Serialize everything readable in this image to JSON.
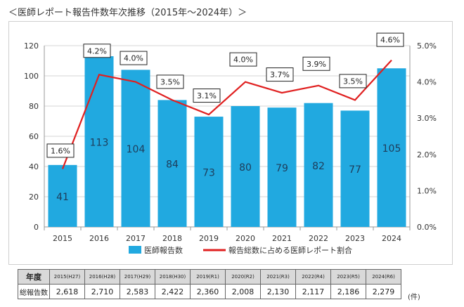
{
  "page": {
    "title": "＜医師レポート報告件数年次推移（2015年～2024年）＞"
  },
  "chart_data": {
    "type": "bar+line",
    "categories": [
      "2015",
      "2016",
      "2017",
      "2018",
      "2019",
      "2020",
      "2021",
      "2022",
      "2023",
      "2024"
    ],
    "series": [
      {
        "name": "医師報告数",
        "type": "bar",
        "axis": "left",
        "color": "#21a9e0",
        "values": [
          41,
          113,
          104,
          84,
          73,
          80,
          79,
          82,
          77,
          105
        ]
      },
      {
        "name": "報告総数に占める医師レポート割合",
        "type": "line",
        "axis": "right",
        "color": "#e02020",
        "values": [
          1.6,
          4.2,
          4.0,
          3.5,
          3.1,
          4.0,
          3.7,
          3.9,
          3.5,
          4.6
        ],
        "labels": [
          "1.6%",
          "4.2%",
          "4.0%",
          "3.5%",
          "3.1%",
          "4.0%",
          "3.7%",
          "3.9%",
          "3.5%",
          "4.6%"
        ]
      }
    ],
    "ylim_left": [
      0,
      120
    ],
    "yticks_left": [
      "0",
      "20",
      "40",
      "60",
      "80",
      "100",
      "120"
    ],
    "ylim_right": [
      0,
      5.0
    ],
    "yticks_right": [
      "0.0%",
      "1.0%",
      "2.0%",
      "3.0%",
      "4.0%",
      "5.0%"
    ],
    "grid": true,
    "legend_position": "bottom"
  },
  "table": {
    "row_header_year": "年度",
    "row_header_total": "総報告数",
    "years": [
      "2015(H27)",
      "2016(H28)",
      "2017(H29)",
      "2018(H30)",
      "2019(R1)",
      "2020(R2)",
      "2021(R3)",
      "2022(R4)",
      "2023(R5)",
      "2024(R6)"
    ],
    "totals": [
      "2,618",
      "2,710",
      "2,583",
      "2,422",
      "2,360",
      "2,008",
      "2,130",
      "2,117",
      "2,186",
      "2,279"
    ],
    "unit": "(件)"
  }
}
